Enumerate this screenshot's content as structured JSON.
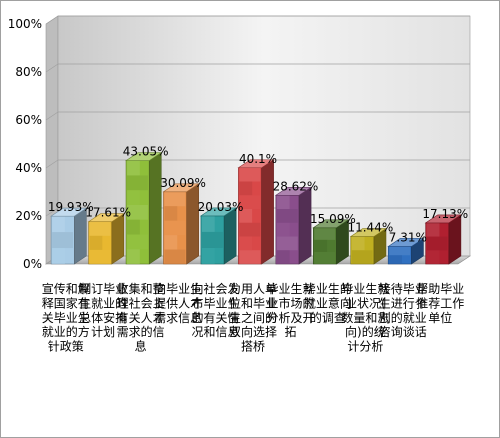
{
  "chart_data": {
    "type": "bar",
    "title": "",
    "xlabel": "",
    "ylabel": "",
    "ylim": [
      0,
      100
    ],
    "y_ticks": [
      "0%",
      "20%",
      "40%",
      "60%",
      "80%",
      "100%"
    ],
    "grid": true,
    "legend": "none",
    "categories": [
      "宣传和解释国家有关毕业生就业的方针政策",
      "制订毕业生就业的总体安排计划",
      "收集和整理社会上有关人才需求的信息",
      "向毕业生提供人才需求信息",
      "向社会发布毕业生的有关情况和信息",
      "为用人单位和毕业生之间的双向选择搭桥",
      "毕业生就业市场的分析及开拓",
      "毕业生的就业意向的调查",
      "毕业生就业状况(数量和志向)的统计分析",
      "接待毕业生进行个别的就业咨询谈话",
      "帮助毕业推荐工作单位"
    ],
    "values": [
      19.93,
      17.61,
      43.05,
      30.09,
      20.03,
      40.1,
      28.62,
      15.09,
      11.44,
      7.31,
      17.13
    ],
    "value_labels": [
      "19.93%",
      "17.61%",
      "43.05%",
      "30.09%",
      "20.03%",
      "40.1%",
      "28.62%",
      "15.09%",
      "11.44%",
      "7.31%",
      "17.13%"
    ],
    "colors": [
      "#a9cce6",
      "#e8b830",
      "#8fbf3a",
      "#e8914a",
      "#2ea0a0",
      "#d94848",
      "#8a4e8c",
      "#4f7a30",
      "#c0b020",
      "#3070c0",
      "#b02030"
    ]
  }
}
